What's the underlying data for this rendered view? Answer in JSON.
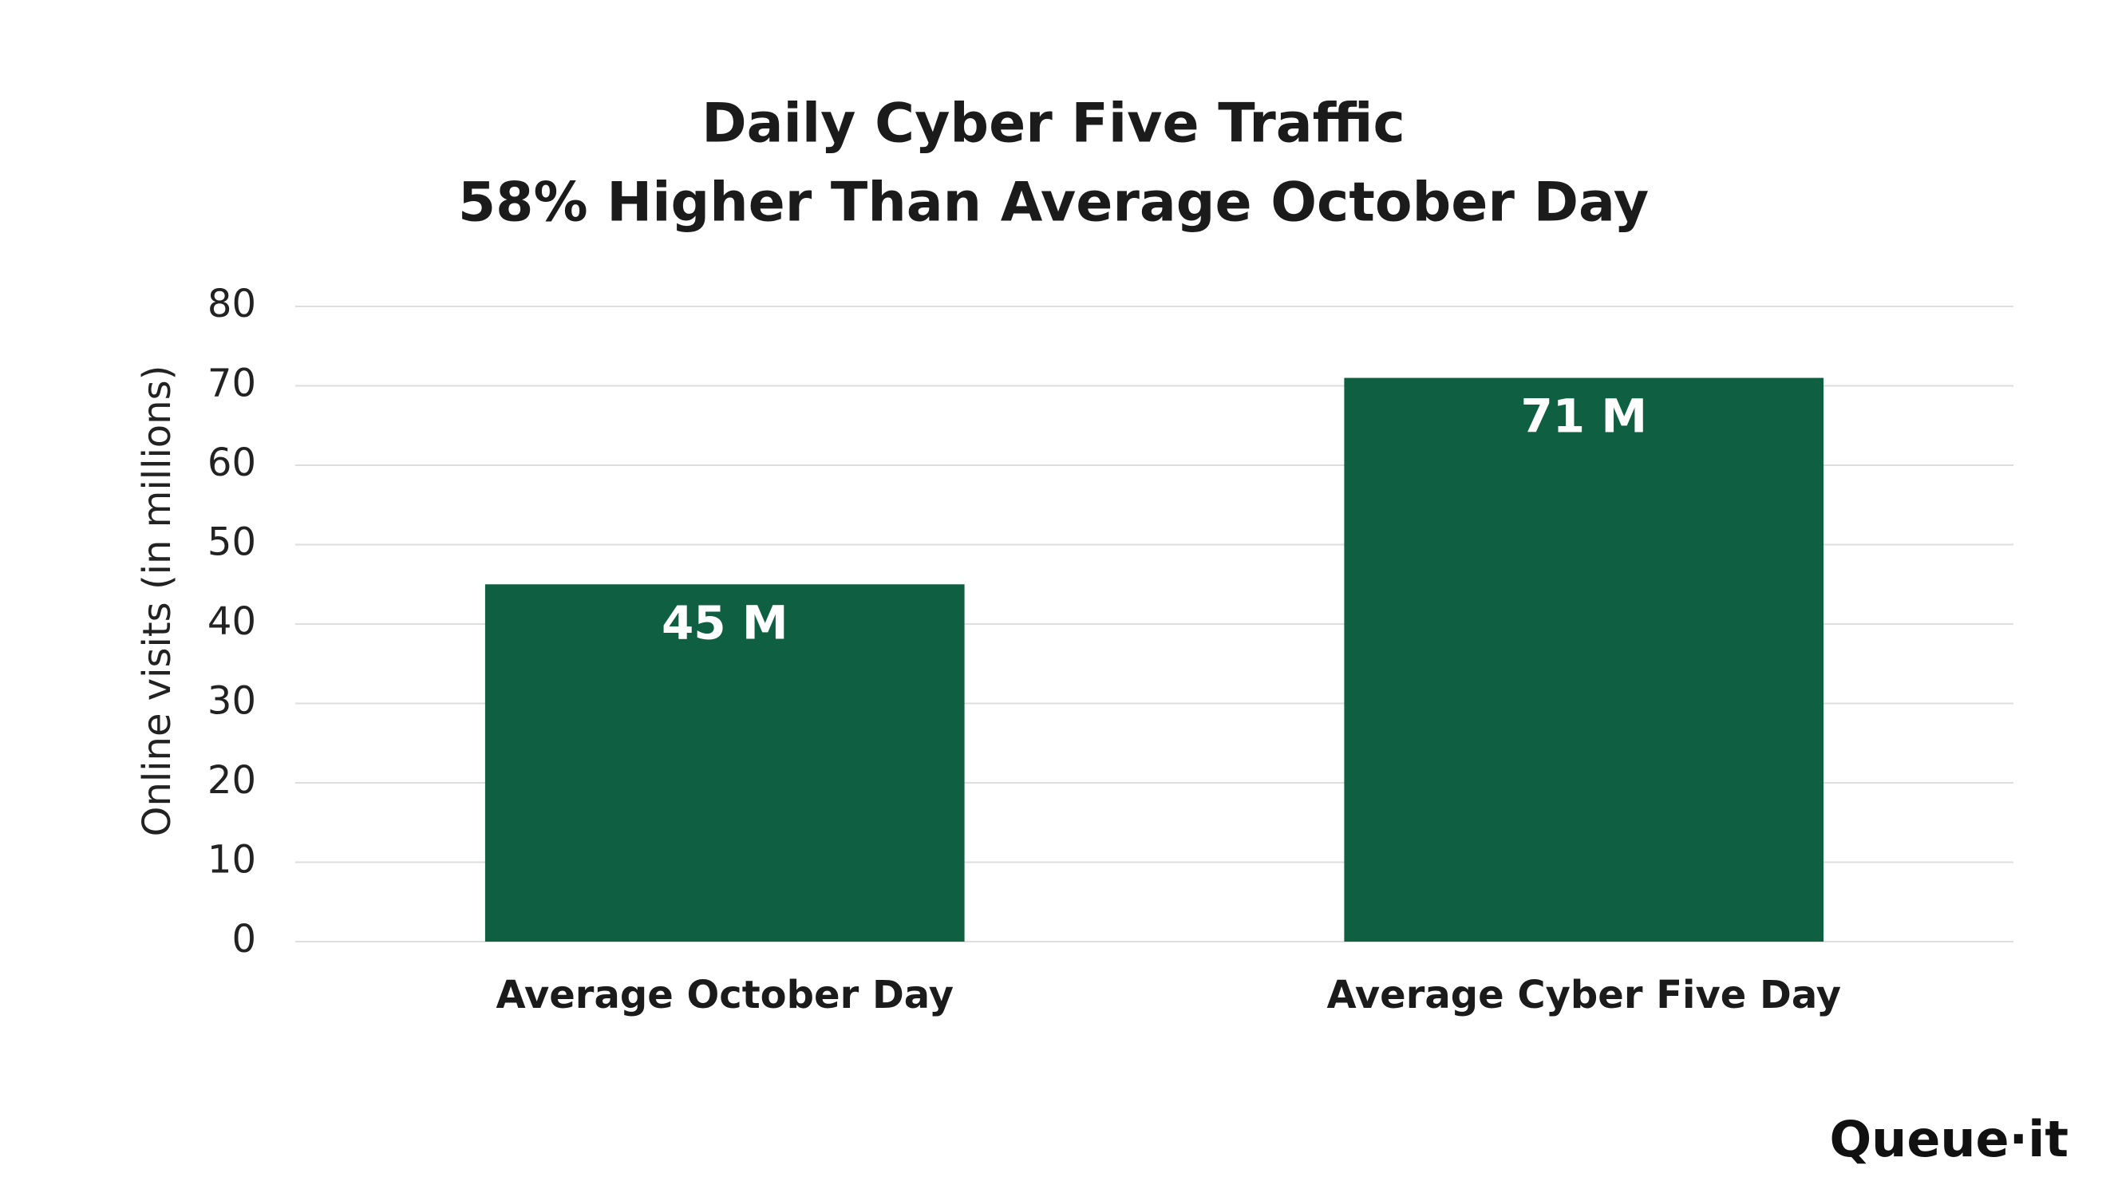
{
  "chart_data": {
    "type": "bar",
    "title": "Daily Cyber Five Traffic",
    "subtitle": "58% Higher Than Average October Day",
    "y_label": "Online visits (in millions)",
    "categories": [
      "Average October Day",
      "Average Cyber Five Day"
    ],
    "values": [
      45,
      71
    ],
    "value_labels": [
      "45 M",
      "71 M"
    ],
    "color": "#0f5f42",
    "ylim": [
      0,
      80
    ],
    "yticks": [
      0,
      10,
      20,
      30,
      40,
      50,
      60,
      70,
      80
    ],
    "grid": true,
    "brand": "Queue·it"
  }
}
